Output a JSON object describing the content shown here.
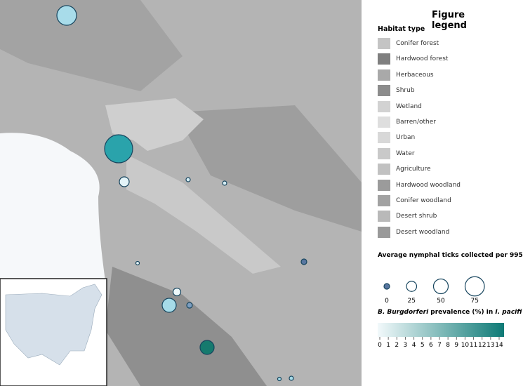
{
  "legend": {
    "title": "Figure legend",
    "habitat_title": "Habitat type",
    "habitats": [
      {
        "label": "Conifer forest",
        "color": "#c4c4c4"
      },
      {
        "label": "Hardwood forest",
        "color": "#7f7f7f"
      },
      {
        "label": "Herbaceous",
        "color": "#a9a9a9"
      },
      {
        "label": "Shrub",
        "color": "#8c8c8c"
      },
      {
        "label": "Wetland",
        "color": "#d2d2d2"
      },
      {
        "label": "Barren/other",
        "color": "#dedede"
      },
      {
        "label": "Urban",
        "color": "#d8d8d8"
      },
      {
        "label": "Water",
        "color": "#c9c9c9"
      },
      {
        "label": "Agriculture",
        "color": "#c1c1c1"
      },
      {
        "label": "Hardwood woodland",
        "color": "#9b9b9b"
      },
      {
        "label": "Conifer woodland",
        "color": "#a2a2a2"
      },
      {
        "label": "Desert shrub",
        "color": "#b9b9b9"
      },
      {
        "label": "Desert woodland",
        "color": "#999999"
      }
    ],
    "size_title": "Average nymphal ticks collected per 995",
    "size_values": [
      0,
      25,
      50,
      75
    ],
    "prevalence_title": {
      "species": "B. Burgdorferi",
      "text": " prevalence (%) in ",
      "host": "I. pacifi"
    },
    "prevalence_ticks": [
      0,
      1,
      2,
      3,
      4,
      5,
      6,
      7,
      8,
      9,
      10,
      11,
      12,
      13,
      14
    ],
    "prevalence_colors": [
      "#f2f9fb",
      "#0e7a76"
    ]
  }
}
